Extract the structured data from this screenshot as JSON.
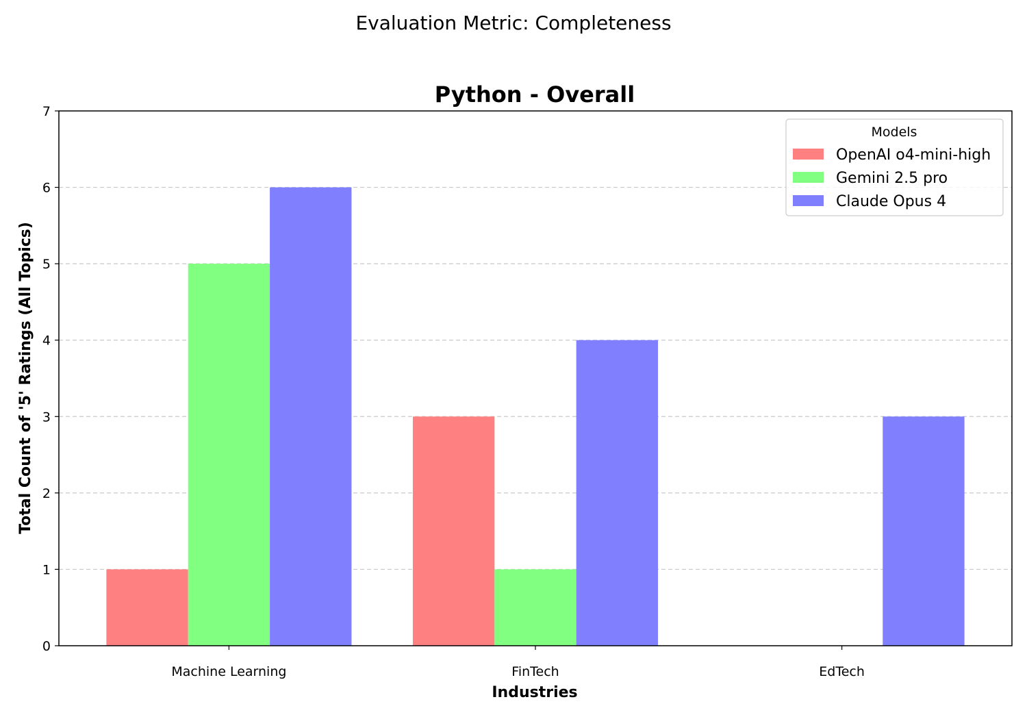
{
  "suptitle": "Evaluation Metric: Completeness",
  "chart_data": {
    "type": "bar",
    "title": "Python - Overall",
    "xlabel": "Industries",
    "ylabel": "Total Count of '5' Ratings (All Topics)",
    "categories": [
      "Machine Learning",
      "FinTech",
      "EdTech"
    ],
    "series": [
      {
        "name": "OpenAI o4-mini-high",
        "values": [
          1,
          3,
          0
        ],
        "color": "#ff8080"
      },
      {
        "name": "Gemini 2.5 pro",
        "values": [
          5,
          1,
          0
        ],
        "color": "#80ff80"
      },
      {
        "name": "Claude Opus 4",
        "values": [
          6,
          4,
          3
        ],
        "color": "#8080ff"
      }
    ],
    "ylim": [
      0,
      7
    ],
    "yticks": [
      "0",
      "1",
      "2",
      "3",
      "4",
      "5",
      "6",
      "7"
    ],
    "grid": "horizontal dashed",
    "legend": {
      "title": "Models",
      "placement": "top-right"
    }
  }
}
